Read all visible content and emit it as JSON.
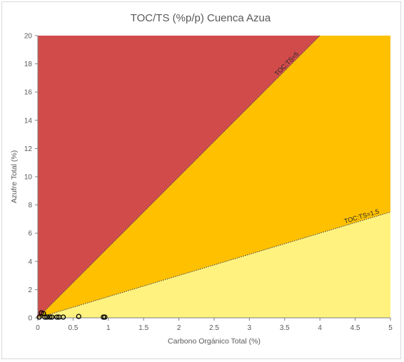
{
  "chart_data": {
    "type": "scatter",
    "title": "TOC/TS (%p/p) Cuenca Azua",
    "xlabel": "Carbono Orgánico Total (%)",
    "ylabel": "Azufre Total (%)",
    "xlim": [
      0,
      5
    ],
    "ylim": [
      0,
      20
    ],
    "x_ticks": [
      "0",
      "0.5",
      "1",
      "1.5",
      "2",
      "2.5",
      "3",
      "3.5",
      "4",
      "4.5",
      "5"
    ],
    "y_ticks": [
      "0",
      "2",
      "4",
      "6",
      "8",
      "10",
      "12",
      "14",
      "16",
      "18",
      "20"
    ],
    "grid": false,
    "legend": "none",
    "regions": [
      {
        "color": "#d14b4b",
        "bounds": "above TOC:TS=5"
      },
      {
        "color": "#ffc000",
        "bounds": "between TOC:TS=5 and TOC:TS=1.5"
      },
      {
        "color": "#fff27f",
        "bounds": "below TOC:TS=1.5"
      }
    ],
    "reference_lines": [
      {
        "label": "TOC:TS=5",
        "slope": 5
      },
      {
        "label": "TOC:TS=1.5",
        "slope": 1.5
      }
    ],
    "points": [
      {
        "x": 0.02,
        "y": 0.05
      },
      {
        "x": 0.05,
        "y": 0.35
      },
      {
        "x": 0.08,
        "y": 0.3
      },
      {
        "x": 0.1,
        "y": 0.05
      },
      {
        "x": 0.13,
        "y": 0.05
      },
      {
        "x": 0.17,
        "y": 0.05
      },
      {
        "x": 0.2,
        "y": 0.05
      },
      {
        "x": 0.27,
        "y": 0.05
      },
      {
        "x": 0.3,
        "y": 0.05
      },
      {
        "x": 0.36,
        "y": 0.05
      },
      {
        "x": 0.58,
        "y": 0.1
      },
      {
        "x": 0.93,
        "y": 0.05
      },
      {
        "x": 0.95,
        "y": 0.05
      }
    ]
  }
}
